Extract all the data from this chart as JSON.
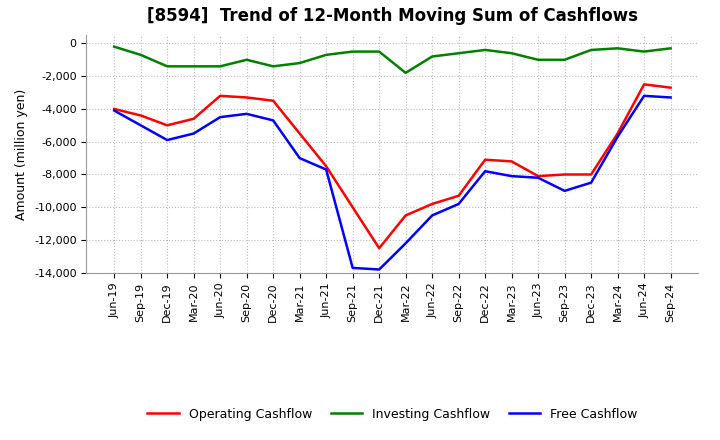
{
  "title": "[8594]  Trend of 12-Month Moving Sum of Cashflows",
  "ylabel": "Amount (million yen)",
  "x_labels": [
    "Jun-19",
    "Sep-19",
    "Dec-19",
    "Mar-20",
    "Jun-20",
    "Sep-20",
    "Dec-20",
    "Mar-21",
    "Jun-21",
    "Sep-21",
    "Dec-21",
    "Mar-22",
    "Jun-22",
    "Sep-22",
    "Dec-22",
    "Mar-23",
    "Jun-23",
    "Sep-23",
    "Dec-23",
    "Mar-24",
    "Jun-24",
    "Sep-24"
  ],
  "operating": [
    -4000,
    -4400,
    -5000,
    -4600,
    -3200,
    -3300,
    -3500,
    -5500,
    -7500,
    -10000,
    -12500,
    -10500,
    -9800,
    -9300,
    -7100,
    -7200,
    -8100,
    -8000,
    -8000,
    -5500,
    -2500,
    -2700
  ],
  "investing": [
    -200,
    -700,
    -1400,
    -1400,
    -1400,
    -1000,
    -1400,
    -1200,
    -700,
    -500,
    -500,
    -1800,
    -800,
    -600,
    -400,
    -600,
    -1000,
    -1000,
    -400,
    -300,
    -500,
    -300
  ],
  "free": [
    -4100,
    -5000,
    -5900,
    -5500,
    -4500,
    -4300,
    -4700,
    -7000,
    -7700,
    -13700,
    -13800,
    -12200,
    -10500,
    -9800,
    -7800,
    -8100,
    -8200,
    -9000,
    -8500,
    -5700,
    -3200,
    -3300
  ],
  "ylim": [
    -14000,
    500
  ],
  "yticks": [
    0,
    -2000,
    -4000,
    -6000,
    -8000,
    -10000,
    -12000,
    -14000
  ],
  "operating_color": "#ff0000",
  "investing_color": "#008000",
  "free_color": "#0000ff",
  "background_color": "#ffffff",
  "grid_color": "#bbbbbb",
  "title_fontsize": 12,
  "axis_fontsize": 9,
  "tick_fontsize": 8
}
